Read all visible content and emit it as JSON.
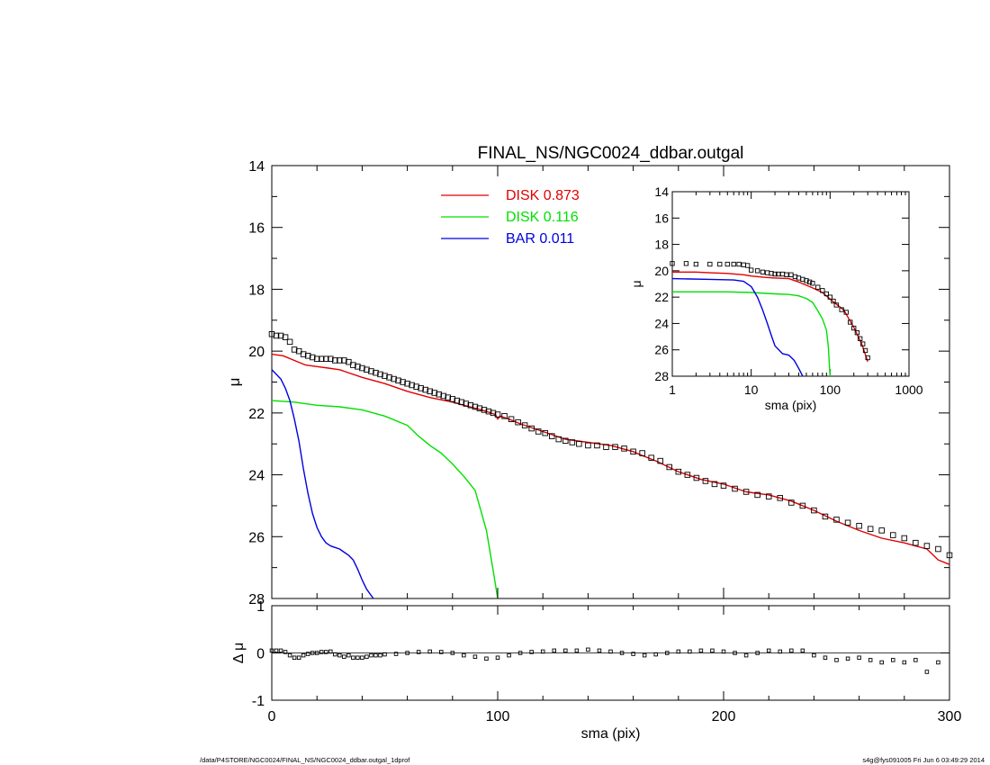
{
  "chart_data": [
    {
      "type": "line",
      "title": "FINAL_NS/NGC0024_ddbar.outgal",
      "xlabel": "",
      "ylabel": "μ",
      "xlim": [
        0,
        300
      ],
      "ylim": [
        28,
        14
      ],
      "y_inverted": true,
      "y_ticks": [
        "14",
        "16",
        "18",
        "20",
        "22",
        "24",
        "26",
        "28"
      ],
      "x_ticks": [
        0,
        100,
        200,
        300
      ],
      "legend_position": "top-center",
      "series": [
        {
          "name": "DISK 0.873",
          "color": "#e00000",
          "x": [
            0,
            5,
            10,
            15,
            20,
            25,
            30,
            40,
            50,
            60,
            70,
            80,
            90,
            95,
            99,
            100,
            101,
            105,
            110,
            120,
            130,
            140,
            150,
            160,
            163,
            170,
            180,
            190,
            200,
            210,
            220,
            230,
            240,
            250,
            260,
            270,
            280,
            290,
            295,
            300
          ],
          "y": [
            20.1,
            20.15,
            20.3,
            20.45,
            20.5,
            20.55,
            20.6,
            20.85,
            21.05,
            21.3,
            21.5,
            21.65,
            21.85,
            21.95,
            22.05,
            22.2,
            22.1,
            22.2,
            22.35,
            22.6,
            22.85,
            22.95,
            23.05,
            23.25,
            23.35,
            23.55,
            23.9,
            24.15,
            24.3,
            24.55,
            24.65,
            24.85,
            25.15,
            25.5,
            25.8,
            26.05,
            26.2,
            26.4,
            26.75,
            26.9
          ]
        },
        {
          "name": "DISK 0.116",
          "color": "#00e000",
          "x": [
            0,
            10,
            20,
            30,
            40,
            50,
            60,
            65,
            70,
            75,
            80,
            85,
            90,
            95,
            98,
            100
          ],
          "y": [
            21.6,
            21.65,
            21.75,
            21.8,
            21.9,
            22.1,
            22.4,
            22.75,
            23.05,
            23.3,
            23.65,
            24.05,
            24.5,
            25.8,
            27.1,
            28
          ]
        },
        {
          "name": "BAR 0.011",
          "color": "#0000e0",
          "x": [
            0,
            2,
            4,
            6,
            8,
            10,
            12,
            14,
            16,
            18,
            20,
            22,
            24,
            26,
            28,
            30,
            32,
            34,
            36,
            38,
            40,
            42,
            44,
            45
          ],
          "y": [
            20.6,
            20.75,
            20.9,
            21.2,
            21.6,
            22.2,
            22.9,
            23.8,
            24.6,
            25.25,
            25.7,
            26.0,
            26.2,
            26.3,
            26.35,
            26.4,
            26.5,
            26.6,
            26.75,
            27.05,
            27.4,
            27.7,
            27.9,
            28.0
          ]
        },
        {
          "name": "",
          "color": "#000000",
          "marker": "square",
          "x": [
            0,
            2,
            4,
            6,
            8,
            10,
            12,
            14,
            16,
            18,
            20,
            22,
            24,
            26,
            28,
            30,
            32,
            34,
            36,
            38,
            40,
            42,
            44,
            46,
            48,
            50,
            52,
            54,
            56,
            58,
            60,
            62,
            64,
            66,
            68,
            70,
            72,
            74,
            76,
            78,
            80,
            82,
            84,
            86,
            88,
            90,
            92,
            94,
            96,
            98,
            100,
            103,
            106,
            109,
            112,
            115,
            118,
            121,
            124,
            127,
            130,
            133,
            136,
            140,
            144,
            148,
            152,
            156,
            160,
            164,
            168,
            172,
            176,
            180,
            184,
            188,
            192,
            196,
            200,
            205,
            210,
            215,
            220,
            225,
            230,
            235,
            240,
            245,
            250,
            255,
            260,
            265,
            270,
            275,
            280,
            285,
            290,
            295,
            300
          ],
          "y": [
            19.45,
            19.5,
            19.5,
            19.55,
            19.7,
            19.95,
            20.0,
            20.1,
            20.15,
            20.2,
            20.25,
            20.25,
            20.25,
            20.25,
            20.3,
            20.3,
            20.3,
            20.35,
            20.45,
            20.5,
            20.55,
            20.6,
            20.65,
            20.7,
            20.75,
            20.8,
            20.85,
            20.9,
            20.95,
            21.0,
            21.05,
            21.1,
            21.15,
            21.2,
            21.25,
            21.3,
            21.35,
            21.4,
            21.45,
            21.5,
            21.55,
            21.6,
            21.65,
            21.7,
            21.75,
            21.8,
            21.85,
            21.9,
            21.95,
            22.0,
            22.05,
            22.1,
            22.2,
            22.3,
            22.4,
            22.5,
            22.6,
            22.65,
            22.75,
            22.85,
            22.9,
            22.95,
            23.0,
            23.05,
            23.05,
            23.1,
            23.1,
            23.15,
            23.25,
            23.3,
            23.45,
            23.55,
            23.75,
            23.9,
            24.0,
            24.1,
            24.2,
            24.3,
            24.35,
            24.45,
            24.55,
            24.65,
            24.7,
            24.75,
            24.9,
            25.0,
            25.15,
            25.35,
            25.45,
            25.55,
            25.65,
            25.75,
            25.8,
            25.95,
            26.05,
            26.2,
            26.3,
            26.4,
            26.6
          ]
        }
      ]
    },
    {
      "type": "scatter",
      "title": "",
      "xlabel": "sma (pix)",
      "ylabel": "Δ μ",
      "xlim": [
        0,
        300
      ],
      "ylim": [
        -1,
        1
      ],
      "x_ticks": [
        "0",
        "100",
        "200",
        "300"
      ],
      "y_ticks": [
        "1",
        "0",
        "-1"
      ],
      "series": [
        {
          "name": "",
          "color": "#000000",
          "marker": "square",
          "x": [
            0,
            2,
            4,
            6,
            8,
            10,
            12,
            14,
            16,
            18,
            20,
            22,
            24,
            26,
            28,
            30,
            32,
            34,
            36,
            38,
            40,
            42,
            44,
            46,
            48,
            50,
            55,
            60,
            65,
            70,
            75,
            80,
            85,
            90,
            95,
            100,
            105,
            110,
            115,
            120,
            125,
            130,
            135,
            140,
            145,
            150,
            155,
            160,
            165,
            170,
            175,
            180,
            185,
            190,
            195,
            200,
            205,
            210,
            215,
            220,
            225,
            230,
            235,
            240,
            245,
            250,
            255,
            260,
            265,
            270,
            275,
            280,
            285,
            290,
            295
          ],
          "y": [
            0.05,
            0.05,
            0.05,
            0.02,
            -0.05,
            -0.1,
            -0.1,
            -0.05,
            -0.02,
            0.0,
            0.0,
            0.02,
            0.02,
            0.03,
            -0.03,
            -0.05,
            -0.08,
            -0.05,
            -0.1,
            -0.1,
            -0.1,
            -0.08,
            -0.05,
            -0.05,
            -0.05,
            -0.03,
            -0.02,
            0.0,
            0.02,
            0.03,
            0.02,
            0.0,
            -0.05,
            -0.08,
            -0.12,
            -0.1,
            -0.05,
            0.0,
            0.02,
            0.03,
            0.05,
            0.05,
            0.05,
            0.07,
            0.05,
            0.03,
            0.0,
            -0.02,
            -0.05,
            -0.03,
            0.0,
            0.03,
            0.03,
            0.05,
            0.05,
            0.03,
            0.0,
            -0.05,
            0.0,
            0.05,
            0.03,
            0.05,
            0.05,
            -0.05,
            -0.1,
            -0.15,
            -0.12,
            -0.1,
            -0.15,
            -0.2,
            -0.15,
            -0.2,
            -0.15,
            -0.4,
            -0.2
          ]
        }
      ]
    },
    {
      "type": "line",
      "title": "",
      "xlabel": "sma (pix)",
      "ylabel": "μ",
      "x_scale": "log",
      "xlim": [
        1,
        1000
      ],
      "ylim": [
        28,
        14
      ],
      "x_ticks": [
        "1",
        "10",
        "100",
        "1000"
      ],
      "y_ticks": [
        "14",
        "16",
        "18",
        "20",
        "22",
        "24",
        "26",
        "28"
      ],
      "series": [
        {
          "name": "",
          "color": "#e00000",
          "x": [
            1,
            2,
            3,
            5,
            8,
            10,
            15,
            20,
            30,
            40,
            60,
            80,
            100,
            150,
            200,
            250,
            300
          ],
          "y": [
            20.1,
            20.1,
            20.15,
            20.2,
            20.3,
            20.4,
            20.5,
            20.55,
            20.6,
            20.85,
            21.3,
            21.65,
            22.15,
            23.0,
            24.3,
            25.5,
            26.9
          ]
        },
        {
          "name": "",
          "color": "#00e000",
          "x": [
            1,
            5,
            10,
            20,
            30,
            40,
            50,
            60,
            70,
            80,
            90,
            95,
            100
          ],
          "y": [
            21.6,
            21.6,
            21.65,
            21.75,
            21.8,
            21.9,
            22.1,
            22.4,
            23.05,
            23.65,
            24.5,
            25.8,
            28
          ]
        },
        {
          "name": "",
          "color": "#0000e0",
          "x": [
            1,
            3,
            6,
            8,
            10,
            12,
            14,
            16,
            18,
            20,
            25,
            30,
            35,
            40,
            45
          ],
          "y": [
            20.6,
            20.65,
            20.7,
            20.8,
            21.2,
            22.0,
            23.0,
            24.0,
            24.9,
            25.7,
            26.3,
            26.4,
            26.8,
            27.4,
            28.0
          ]
        },
        {
          "name": "",
          "color": "#000000",
          "marker": "square",
          "x": [
            1,
            1.5,
            2,
            3,
            4,
            5,
            6,
            7,
            8,
            9,
            10,
            12,
            14,
            16,
            18,
            20,
            22,
            25,
            28,
            32,
            36,
            40,
            45,
            50,
            55,
            60,
            70,
            80,
            90,
            100,
            110,
            120,
            140,
            160,
            180,
            200,
            220,
            240,
            260,
            280,
            300
          ],
          "y": [
            19.45,
            19.45,
            19.5,
            19.5,
            19.5,
            19.5,
            19.5,
            19.5,
            19.55,
            19.6,
            19.95,
            20.0,
            20.1,
            20.15,
            20.2,
            20.25,
            20.25,
            20.25,
            20.3,
            20.3,
            20.45,
            20.55,
            20.65,
            20.75,
            20.85,
            20.95,
            21.25,
            21.5,
            21.75,
            22.0,
            22.3,
            22.6,
            22.95,
            23.15,
            23.9,
            24.35,
            24.7,
            25.15,
            25.55,
            26.05,
            26.6
          ]
        }
      ]
    }
  ],
  "footer": {
    "left": "/data/P4STORE/NGC0024/FINAL_NS/NGC0024_ddbar.outgal_1dprof",
    "right": "s4g@fys091005  Fri Jun  6 03:49:29 2014"
  }
}
